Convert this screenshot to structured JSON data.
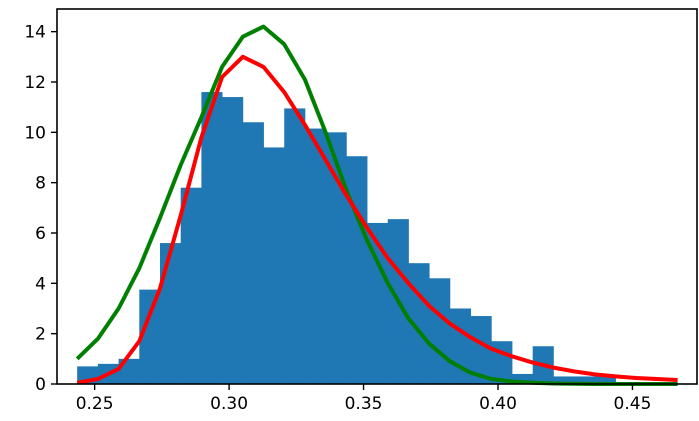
{
  "chart_data": {
    "type": "histogram",
    "title": "",
    "xlabel": "",
    "ylabel": "",
    "xlim": [
      0.236,
      0.474
    ],
    "ylim": [
      0,
      14.9
    ],
    "grid": false,
    "legend": "none",
    "x_ticks": [
      0.25,
      0.3,
      0.35,
      0.4,
      0.45
    ],
    "x_tick_labels": [
      "0.25",
      "0.30",
      "0.35",
      "0.40",
      "0.45"
    ],
    "y_ticks": [
      0,
      2,
      4,
      6,
      8,
      10,
      12,
      14
    ],
    "y_tick_labels": [
      "0",
      "2",
      "4",
      "6",
      "8",
      "10",
      "12",
      "14"
    ],
    "histogram": {
      "color": "#1f77b4",
      "bin_edges": [
        0.2435,
        0.2512,
        0.2589,
        0.2666,
        0.2743,
        0.282,
        0.2897,
        0.2974,
        0.3051,
        0.3128,
        0.3205,
        0.3282,
        0.3359,
        0.3436,
        0.3513,
        0.359,
        0.3667,
        0.3744,
        0.3821,
        0.3898,
        0.3975,
        0.4052,
        0.4129,
        0.4206,
        0.4283,
        0.436,
        0.4437
      ],
      "densities": [
        0.7,
        0.8,
        1.0,
        3.75,
        5.6,
        7.8,
        11.6,
        11.4,
        10.4,
        9.4,
        10.95,
        10.15,
        10.0,
        9.05,
        6.4,
        6.55,
        4.8,
        4.2,
        3.0,
        2.7,
        1.7,
        0.4,
        1.5,
        0.3,
        0.3,
        0.3
      ]
    },
    "series": [
      {
        "type": "line",
        "color": "#008000",
        "x": [
          0.2435,
          0.2512,
          0.2589,
          0.2666,
          0.2743,
          0.282,
          0.2897,
          0.2974,
          0.3051,
          0.3128,
          0.3205,
          0.3282,
          0.3359,
          0.3436,
          0.3513,
          0.359,
          0.3667,
          0.3744,
          0.3821,
          0.3898,
          0.3975,
          0.4052,
          0.4129,
          0.4206,
          0.4283,
          0.436,
          0.4437,
          0.4514,
          0.4591,
          0.4668
        ],
        "y": [
          1.0,
          1.8,
          3.0,
          4.6,
          6.6,
          8.7,
          10.6,
          12.6,
          13.8,
          14.2,
          13.5,
          12.1,
          10.0,
          7.7,
          5.7,
          4.0,
          2.6,
          1.6,
          0.9,
          0.45,
          0.2,
          0.1,
          0.05,
          0.02,
          0.01,
          0.0,
          0.0,
          0.0,
          0.0,
          0.0
        ]
      },
      {
        "type": "line",
        "color": "#ff0000",
        "x": [
          0.2435,
          0.2512,
          0.2589,
          0.2666,
          0.2743,
          0.282,
          0.2897,
          0.2974,
          0.3051,
          0.3128,
          0.3205,
          0.3282,
          0.3359,
          0.3436,
          0.3513,
          0.359,
          0.3667,
          0.3744,
          0.3821,
          0.3898,
          0.3975,
          0.4052,
          0.4129,
          0.4206,
          0.4283,
          0.436,
          0.4437,
          0.4514,
          0.4591,
          0.4668
        ],
        "y": [
          0.05,
          0.2,
          0.6,
          1.7,
          3.8,
          6.7,
          9.8,
          12.2,
          13.0,
          12.6,
          11.6,
          10.3,
          8.9,
          7.5,
          6.2,
          5.0,
          4.0,
          3.1,
          2.4,
          1.85,
          1.4,
          1.1,
          0.85,
          0.65,
          0.5,
          0.38,
          0.3,
          0.24,
          0.2,
          0.16
        ]
      }
    ]
  }
}
